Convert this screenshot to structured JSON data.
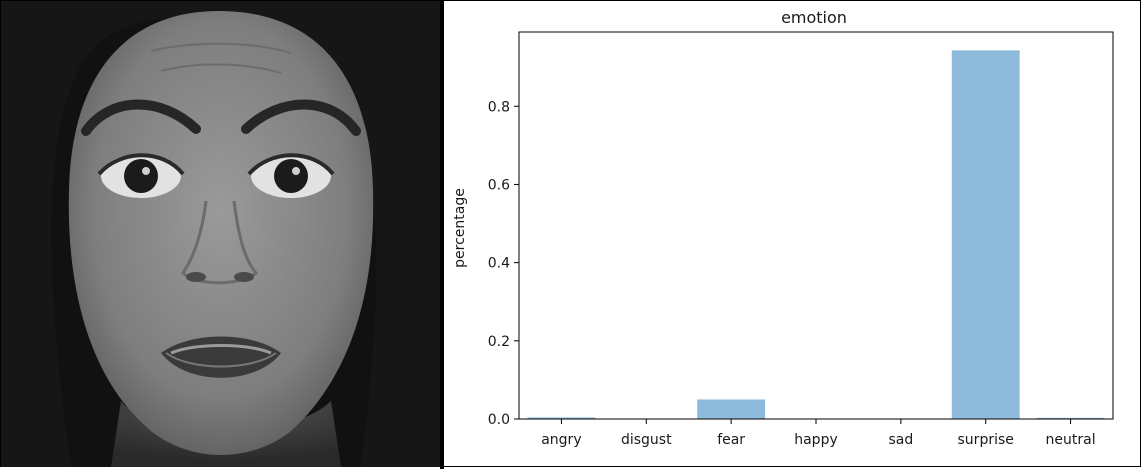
{
  "chart_data": {
    "type": "bar",
    "title": "emotion",
    "xlabel": "",
    "ylabel": "percentage",
    "categories": [
      "angry",
      "disgust",
      "fear",
      "happy",
      "sad",
      "surprise",
      "neutral"
    ],
    "values": [
      0.004,
      0.0,
      0.05,
      0.0,
      0.0,
      0.943,
      0.003
    ],
    "ylim": [
      0,
      0.99
    ],
    "yticks": [
      0.0,
      0.2,
      0.4,
      0.6,
      0.8
    ],
    "ytick_labels": [
      "0.0",
      "0.2",
      "0.4",
      "0.6",
      "0.8"
    ],
    "bar_color": "#8ebadb",
    "grid": false,
    "legend": "none"
  },
  "photo": {
    "icon": "face-photo",
    "skin_color": "#8a8a8a",
    "hair_color": "#141414"
  }
}
